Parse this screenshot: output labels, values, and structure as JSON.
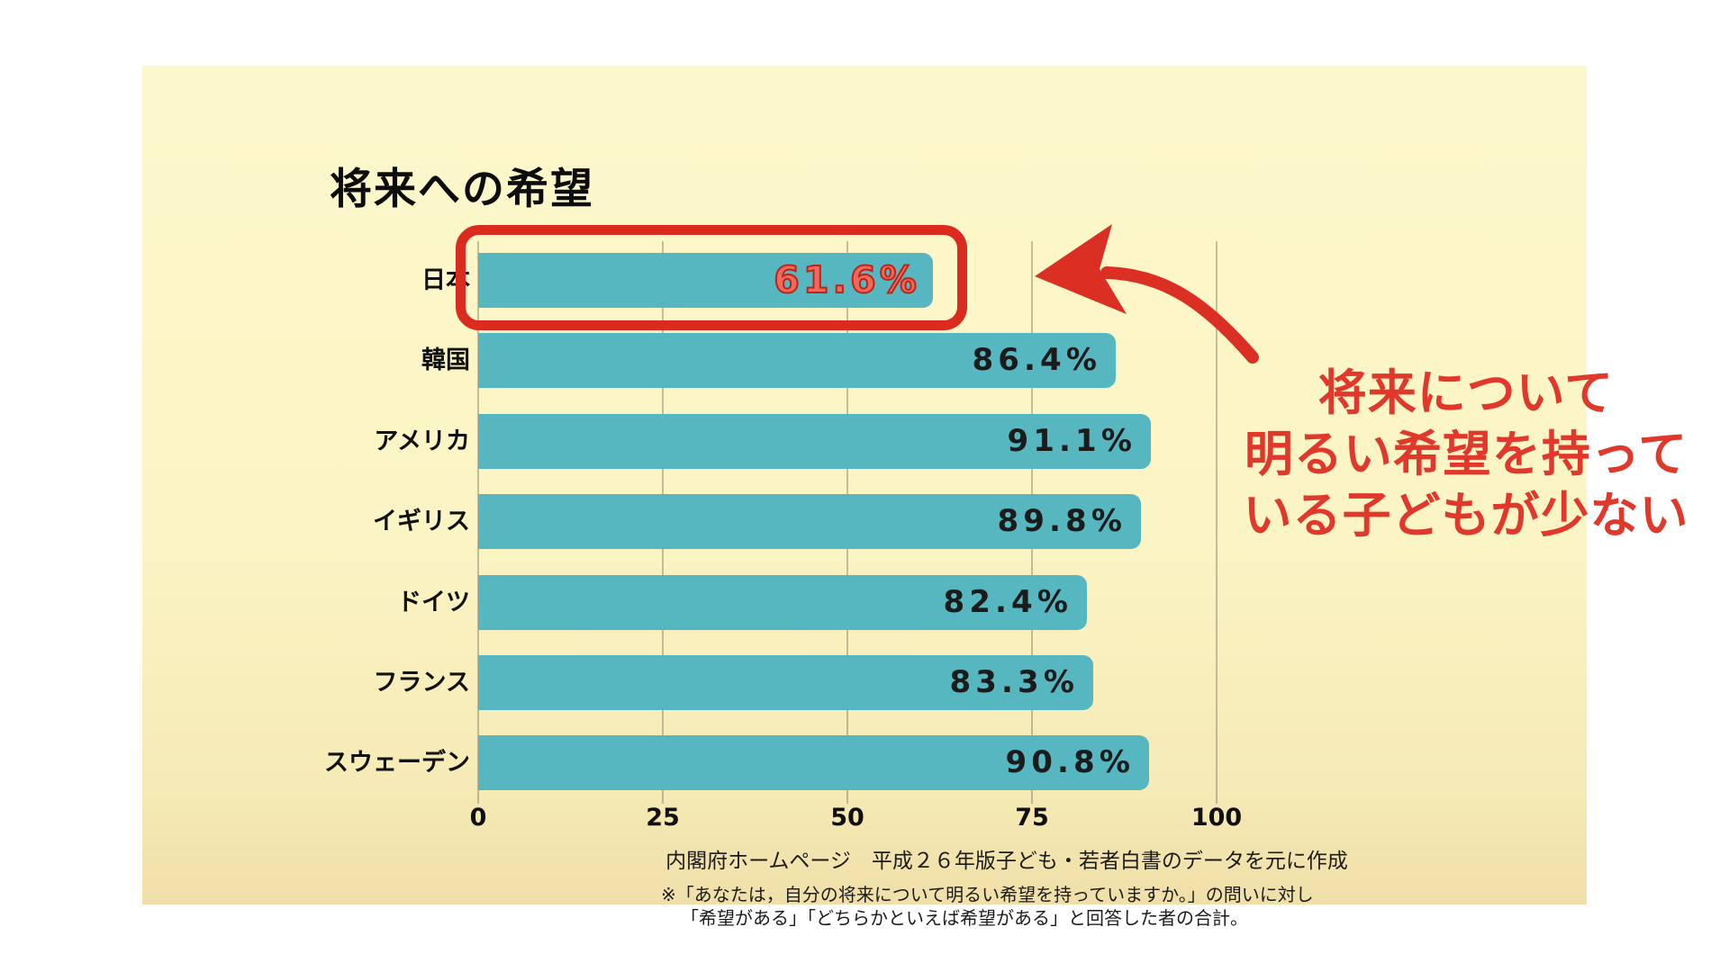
{
  "title": "将来への希望",
  "chart_data": {
    "type": "bar",
    "orientation": "horizontal",
    "title": "将来への希望",
    "categories": [
      "日本",
      "韓国",
      "アメリカ",
      "イギリス",
      "ドイツ",
      "フランス",
      "スウェーデン"
    ],
    "values": [
      61.6,
      86.4,
      91.1,
      89.8,
      82.4,
      83.3,
      90.8
    ],
    "value_suffix": "%",
    "xlim": [
      0,
      100
    ],
    "x_ticks": [
      0,
      25,
      50,
      75,
      100
    ],
    "grid": "vertical",
    "highlight_index": 0,
    "bar_color": "#57b7c1",
    "value_color": "#1b1b1b",
    "highlight_value_color": "#f0695b",
    "highlight_box_color": "#db2b1f"
  },
  "annotation": {
    "lines": [
      "将来について",
      "明るい希望を持って",
      "いる子どもが少ない"
    ],
    "color": "#e0382b",
    "arrow": "curved-red-arrow-pointing-to-japan-bar"
  },
  "source": "内閣府ホームページ　平成２６年版子ども・若者白書のデータを元に作成",
  "footnote_lines": [
    "※「あなたは，自分の将来について明るい希望を持っていますか。」の問いに対し",
    "「希望がある」「どちらかといえば希望がある」と回答した者の合計。"
  ]
}
